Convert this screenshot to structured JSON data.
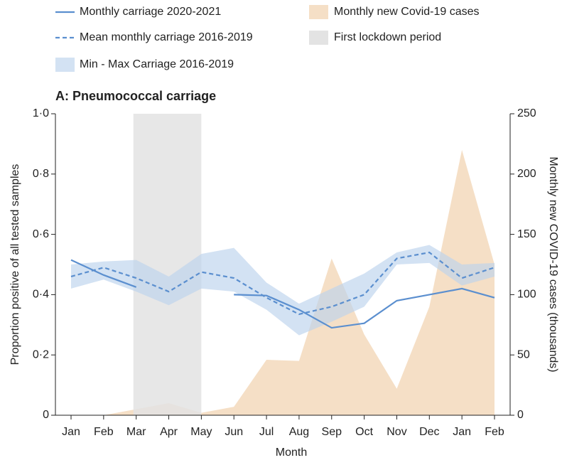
{
  "chart_data": {
    "type": "line",
    "title": "A: Pneumococcal carriage",
    "x_label": "Month",
    "y_label": "Proportion positive of all tested samples",
    "y2_label": "Monthly new COVID-19 cases (thousands)",
    "categories": [
      "Jan",
      "Feb",
      "Mar",
      "Apr",
      "May",
      "Jun",
      "Jul",
      "Aug",
      "Sep",
      "Oct",
      "Nov",
      "Dec",
      "Jan",
      "Feb"
    ],
    "ylim": [
      0,
      1
    ],
    "yticks": [
      0,
      {
        "value": 0.2,
        "label": "0·2"
      },
      {
        "value": 0.4,
        "label": "0·4"
      },
      {
        "value": 0.6,
        "label": "0·6"
      },
      {
        "value": 0.8,
        "label": "0·8"
      },
      {
        "value": 1,
        "label": "1·0"
      }
    ],
    "y2lim": [
      0,
      250
    ],
    "y2ticks": [
      0,
      50,
      100,
      150,
      200,
      250
    ],
    "series": [
      {
        "name": "Monthly carriage 2020-2021",
        "color": "#5b8fcf",
        "style": "solid",
        "values": [
          0.515,
          0.465,
          0.425,
          null,
          null,
          0.4,
          0.397,
          0.35,
          0.29,
          0.305,
          0.38,
          0.4,
          0.42,
          0.39
        ]
      },
      {
        "name": "Mean monthly carriage 2016-2019",
        "color": "#5b8fcf",
        "style": "dashed",
        "values": [
          0.46,
          0.49,
          0.455,
          0.41,
          0.475,
          0.455,
          0.39,
          0.335,
          0.36,
          0.4,
          0.52,
          0.54,
          0.455,
          0.49
        ]
      },
      {
        "name": "Monthly new Covid-19 cases",
        "color": "#f5dfc6",
        "style": "area",
        "axis": "y2",
        "values": [
          null,
          0,
          5,
          10,
          2,
          7,
          46,
          45,
          130,
          67,
          22,
          90,
          220,
          125
        ]
      }
    ],
    "band": {
      "name": "Min - Max Carriage 2016-2019",
      "color": "#bcd3ec",
      "upper": [
        0.5,
        0.51,
        0.515,
        0.46,
        0.535,
        0.555,
        0.44,
        0.37,
        0.42,
        0.47,
        0.54,
        0.565,
        0.5,
        0.505
      ],
      "lower": [
        0.42,
        0.45,
        0.41,
        0.365,
        0.42,
        0.41,
        0.35,
        0.265,
        0.31,
        0.36,
        0.5,
        0.505,
        0.43,
        0.46
      ]
    },
    "shaded_period": {
      "name": "First lockdown period",
      "color": "#e3e3e3",
      "from": 2,
      "to": 4
    }
  }
}
